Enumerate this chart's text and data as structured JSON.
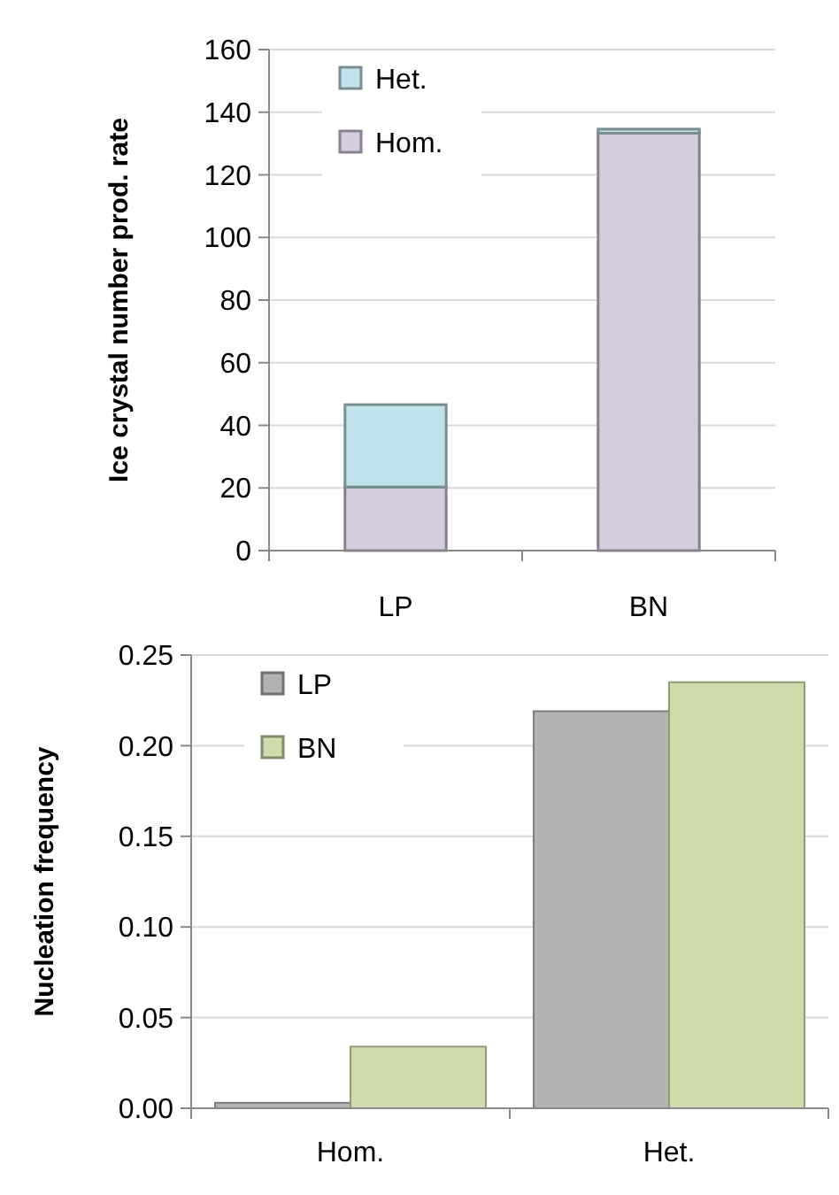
{
  "chart_data": [
    {
      "type": "bar",
      "stacked": true,
      "ylabel": "Ice crystal number prod. rate",
      "categories": [
        "LP",
        "BN"
      ],
      "series": [
        {
          "name": "Hom.",
          "color": "#d6cce0",
          "values": [
            20.3,
            133.3
          ]
        },
        {
          "name": "Het.",
          "color": "#c0e2ea",
          "values": [
            26.3,
            1.3
          ]
        }
      ],
      "ylim": [
        0,
        160
      ],
      "yticks": [
        0,
        20,
        40,
        60,
        80,
        100,
        120,
        140,
        160
      ],
      "grid": "y",
      "legend": "top left"
    },
    {
      "type": "bar",
      "ylabel": "Nucleation frequency",
      "categories": [
        "Hom.",
        "Het."
      ],
      "series": [
        {
          "name": "LP",
          "color": "#b3b3b3",
          "values": [
            0.003,
            0.219
          ]
        },
        {
          "name": "BN",
          "color": "#cddcaa",
          "values": [
            0.034,
            0.235
          ]
        }
      ],
      "ylim": [
        0,
        0.25
      ],
      "yticks": [
        {
          "value": 0,
          "label": "0.00"
        },
        {
          "value": 0.05,
          "label": "0.05"
        },
        {
          "value": 0.1,
          "label": "0.10"
        },
        {
          "value": 0.15,
          "label": "0.15"
        },
        {
          "value": 0.2,
          "label": "0.20"
        },
        {
          "value": 0.25,
          "label": "0.25"
        }
      ],
      "grid": "y",
      "legend": "top left"
    }
  ]
}
